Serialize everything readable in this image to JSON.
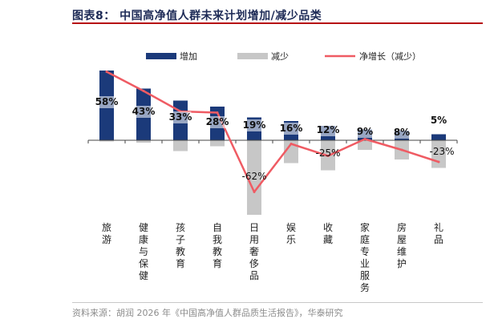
{
  "title": "图表8： 中国高净值人群未来计划增加/减少品类",
  "source": "资料来源：胡润 2026 年《中国高净值人群品质生活报告》，华泰研究",
  "colors": {
    "increase": "#1b3a7a",
    "decrease": "#c7c7c7",
    "net": "#ef5b63",
    "accent": "#b60b12"
  },
  "chart_data": {
    "type": "bar",
    "legend_position": "top",
    "grid": false,
    "categories": [
      "旅游",
      "健康与保健",
      "孩子教育",
      "自我教育",
      "日用奢侈品",
      "娱乐",
      "收藏",
      "家庭专业服务",
      "房屋维护",
      "礼品"
    ],
    "series": [
      {
        "name": "增加",
        "kind": "bar",
        "values": [
          58,
          43,
          33,
          28,
          19,
          16,
          12,
          9,
          8,
          5
        ]
      },
      {
        "name": "减少",
        "kind": "bar",
        "values": [
          -1,
          -2,
          -9,
          -5,
          -62,
          -19,
          -25,
          -8,
          -16,
          -23
        ]
      },
      {
        "name": "净增长（减少）",
        "kind": "line",
        "values": [
          57,
          41,
          24,
          23,
          -43,
          -3,
          -13,
          1,
          -8,
          -18
        ]
      }
    ],
    "data_labels": [
      "58%",
      "43%",
      "33%",
      "28%",
      "19%",
      "16%",
      "12%",
      "9%",
      "8%",
      "5%"
    ],
    "decrease_labels": [
      {
        "index": 4,
        "text": "-62%"
      },
      {
        "index": 6,
        "text": "-25%"
      },
      {
        "index": 9,
        "text": "-23%"
      }
    ],
    "ylim": [
      -62,
      60
    ]
  }
}
